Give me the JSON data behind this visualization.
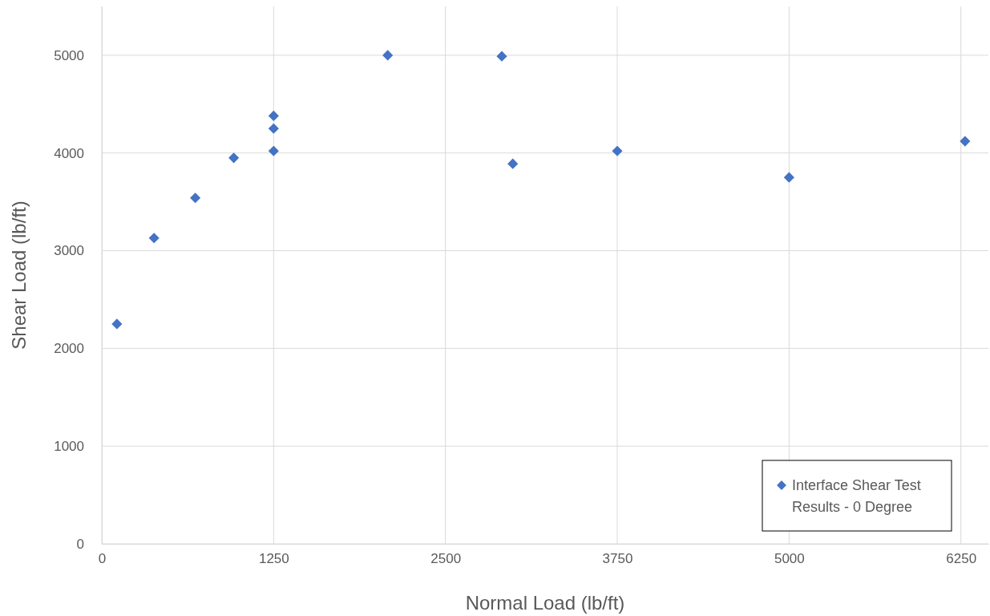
{
  "chart_data": {
    "type": "scatter",
    "xlabel": "Normal Load (lb/ft)",
    "ylabel": "Shear Load (lb/ft)",
    "xlim": [
      0,
      6450
    ],
    "xticks": [
      0,
      1250,
      2500,
      3750,
      5000,
      6250
    ],
    "ylim": [
      0,
      5500
    ],
    "yticks": [
      0,
      1000,
      2000,
      3000,
      4000,
      5000
    ],
    "grid": true,
    "legend": "bottom right",
    "marker": "diamond",
    "series": [
      {
        "name": "Interface Shear Test Results - 0 Degree",
        "color": "#4472c4",
        "x": [
          110,
          380,
          680,
          960,
          1250,
          1250,
          1250,
          2080,
          2910,
          2990,
          3750,
          5000,
          6280
        ],
        "values": [
          2250,
          3130,
          3540,
          3950,
          4380,
          4250,
          4020,
          5000,
          4990,
          3890,
          4020,
          3750,
          4120
        ]
      }
    ]
  }
}
